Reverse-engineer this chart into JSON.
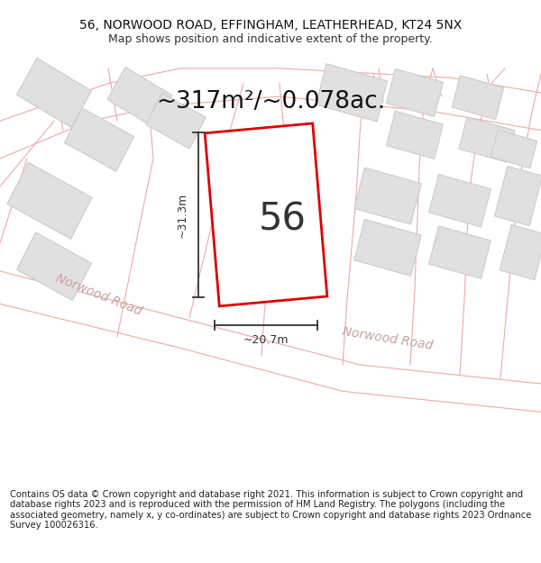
{
  "title_line1": "56, NORWOOD ROAD, EFFINGHAM, LEATHERHEAD, KT24 5NX",
  "title_line2": "Map shows position and indicative extent of the property.",
  "area_label": "~317m²/~0.078ac.",
  "plot_number": "56",
  "dim_height": "~31.3m",
  "dim_width": "~20.7m",
  "street_label1": "Norwood Road",
  "street_label2": "Norwood Road",
  "footer": "Contains OS data © Crown copyright and database right 2021. This information is subject to Crown copyright and database rights 2023 and is reproduced with the permission of HM Land Registry. The polygons (including the associated geometry, namely x, y co-ordinates) are subject to Crown copyright and database rights 2023 Ordnance Survey 100026316.",
  "bg_color": "#ffffff",
  "map_bg": "#ffffff",
  "road_line": "#f0a8a8",
  "plot_line": "#dd0000",
  "plot_fill": "#ffffff",
  "building_fill": "#e0e0e0",
  "building_line": "#c8c8c8",
  "dim_line": "#333333",
  "street_color": "#c8a0a0",
  "title_fontsize": 10.0,
  "subtitle_fontsize": 9.0,
  "area_fontsize": 19,
  "plotnum_fontsize": 30,
  "dim_fontsize": 9.0,
  "street_fontsize": 10,
  "footer_fontsize": 7.2
}
